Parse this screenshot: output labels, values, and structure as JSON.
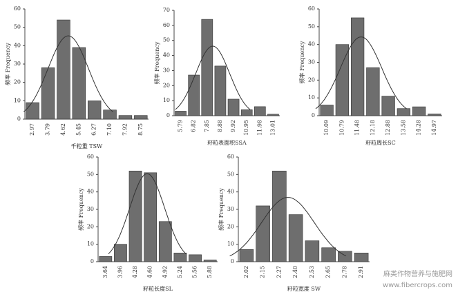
{
  "chart_data": [
    {
      "type": "bar",
      "x_label": "千粒重 TSW",
      "y_label": "频率 Frequency",
      "categories": [
        "2.97",
        "3.79",
        "4.62",
        "5.45",
        "6.27",
        "7.10",
        "7.92",
        "8.75"
      ],
      "values": [
        9,
        28,
        54,
        39,
        10,
        5,
        2,
        2
      ],
      "color": "#6e6e6e",
      "ylim": [
        0,
        60
      ],
      "yticks": [
        0,
        10,
        20,
        30,
        40,
        50,
        60
      ]
    },
    {
      "type": "bar",
      "x_label": "籽粒表面积SSA",
      "y_label": "频率 Frequency",
      "categories": [
        "5.79",
        "6.82",
        "7.85",
        "8.88",
        "9.92",
        "10.95",
        "11.98",
        "13.01"
      ],
      "values": [
        3,
        27,
        64,
        33,
        11,
        4,
        6,
        1
      ],
      "color": "#6e6e6e",
      "ylim": [
        0,
        70
      ],
      "yticks": [
        0,
        10,
        20,
        30,
        40,
        50,
        60,
        70
      ]
    },
    {
      "type": "bar",
      "x_label": "籽粒周长SC",
      "y_label": "频率 Frequency",
      "categories": [
        "10.09",
        "10.79",
        "11.48",
        "12.18",
        "12.88",
        "13.58",
        "14.28",
        "14.97"
      ],
      "values": [
        6,
        40,
        55,
        27,
        11,
        4,
        5,
        1
      ],
      "color": "#6e6e6e",
      "ylim": [
        0,
        60
      ],
      "yticks": [
        0,
        10,
        20,
        30,
        40,
        50,
        60
      ]
    },
    {
      "type": "bar",
      "x_label": "籽粒长度SL",
      "y_label": "频率 Frequency",
      "categories": [
        "3.64",
        "3.96",
        "4.28",
        "4.60",
        "4.92",
        "5.24",
        "5.56",
        "5.88"
      ],
      "values": [
        3,
        10,
        52,
        51,
        23,
        5,
        4,
        1
      ],
      "color": "#6e6e6e",
      "ylim": [
        0,
        60
      ],
      "yticks": [
        0,
        10,
        20,
        30,
        40,
        50,
        60
      ]
    },
    {
      "type": "bar",
      "x_label": "籽粒宽度 SW",
      "y_label": "频率 Frequency",
      "categories": [
        "2.02",
        "2.15",
        "2.27",
        "2.40",
        "2.53",
        "2.65",
        "2.78",
        "2.91"
      ],
      "values": [
        7,
        32,
        52,
        27,
        12,
        8,
        6,
        5
      ],
      "color": "#6e6e6e",
      "ylim": [
        0,
        60
      ],
      "yticks": [
        0,
        10,
        20,
        30,
        40,
        50,
        60
      ]
    }
  ],
  "watermark": {
    "site": "麻类作物营养与施肥网",
    "url": "www.fibercrops.com"
  }
}
